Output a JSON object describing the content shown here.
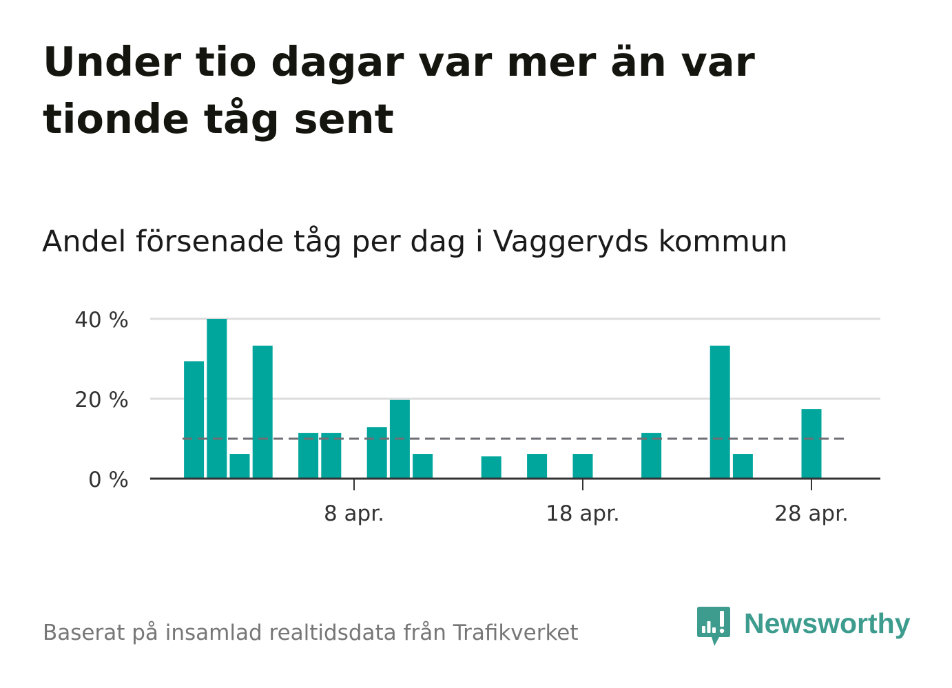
{
  "chart_data": {
    "type": "bar",
    "title": "Under tio dagar var mer än var tionde tåg sent",
    "subtitle": "Andel försenade tåg per dag i Vaggeryds kommun",
    "x": [
      "1 apr.",
      "2 apr.",
      "3 apr.",
      "4 apr.",
      "5 apr.",
      "6 apr.",
      "7 apr.",
      "8 apr.",
      "9 apr.",
      "10 apr.",
      "11 apr.",
      "12 apr.",
      "13 apr.",
      "14 apr.",
      "15 apr.",
      "16 apr.",
      "17 apr.",
      "18 apr.",
      "19 apr.",
      "20 apr.",
      "21 apr.",
      "22 apr.",
      "23 apr.",
      "24 apr.",
      "25 apr.",
      "26 apr.",
      "27 apr.",
      "28 apr.",
      "29 apr."
    ],
    "values": [
      29.4,
      40,
      6.2,
      33.3,
      0,
      11.4,
      11.4,
      0,
      12.9,
      19.7,
      6.2,
      0,
      0,
      5.6,
      0,
      6.2,
      0,
      6.2,
      0,
      0,
      11.4,
      0,
      0,
      33.3,
      6.2,
      0,
      0,
      17.4,
      0
    ],
    "x_ticks": [
      "8 apr.",
      "18 apr.",
      "28 apr."
    ],
    "y_ticks": [
      "0 %",
      "20 %",
      "40 %"
    ],
    "y_tick_values": [
      0,
      20,
      40
    ],
    "ylim": [
      0,
      40
    ],
    "grid": true,
    "reference_line": 10,
    "colors": {
      "bar": "#00a69c",
      "reference_line": "#6f6e74",
      "grid": "#dddddd",
      "axis": "#333333"
    }
  },
  "footer": {
    "source": "Baserat på insamlad realtidsdata från Trafikverket"
  },
  "logo": {
    "text": "Newsworthy",
    "icon": "newsworthy-logo-icon",
    "color": "#3d9c8e"
  }
}
